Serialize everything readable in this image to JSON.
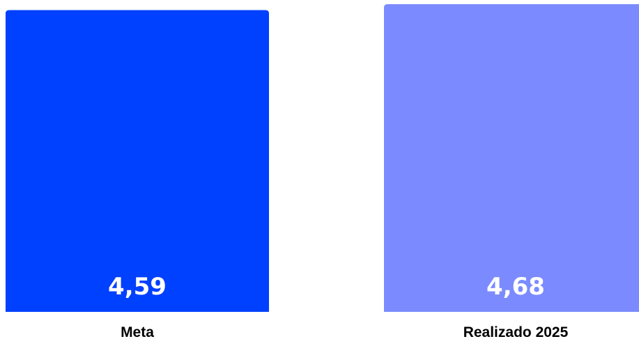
{
  "chart_data": {
    "type": "bar",
    "categories": [
      "Meta",
      "Realizado 2025"
    ],
    "values": [
      4.59,
      4.68
    ],
    "value_labels": [
      "4,59",
      "4,68"
    ],
    "colors": [
      "#0040ff",
      "#7b8bff"
    ],
    "title": "",
    "xlabel": "",
    "ylabel": "",
    "ylim": [
      0,
      4.68
    ],
    "grid": false,
    "legend": "none"
  }
}
